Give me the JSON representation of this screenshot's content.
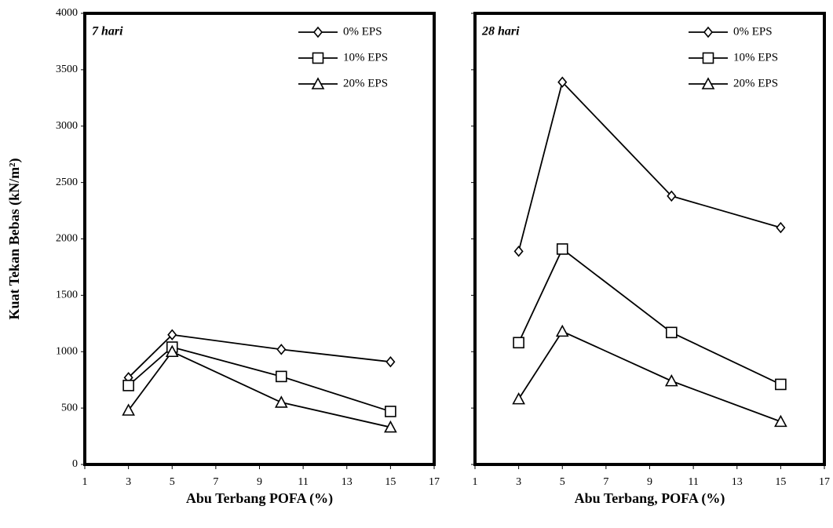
{
  "chart_data": [
    {
      "type": "line",
      "title": "7 hari",
      "x_label": "Abu Terbang POFA (%)",
      "y_label": "Kuat Tekan Bebas (kN/m²)",
      "x": [
        3,
        5,
        10,
        15
      ],
      "series": [
        {
          "name": "0% EPS",
          "color": "#000000",
          "marker": "diamond",
          "values": [
            770,
            1150,
            1020,
            910
          ]
        },
        {
          "name": "10% EPS",
          "color": "#000000",
          "marker": "square",
          "values": [
            700,
            1040,
            780,
            470
          ]
        },
        {
          "name": "20% EPS",
          "color": "#000000",
          "marker": "triangle",
          "values": [
            480,
            1000,
            550,
            330
          ]
        }
      ],
      "xlim": [
        1,
        17
      ],
      "xticks": [
        1,
        3,
        5,
        7,
        9,
        11,
        13,
        15,
        17
      ],
      "ylim": [
        0,
        4000
      ],
      "yticks": [
        0,
        500,
        1000,
        1500,
        2000,
        2500,
        3000,
        3500,
        4000
      ],
      "ytick_labels": true,
      "legend": "upper right",
      "grid": false
    },
    {
      "type": "line",
      "title": "28 hari",
      "x_label": "Abu Terbang, POFA (%)",
      "x": [
        3,
        5,
        10,
        15
      ],
      "series": [
        {
          "name": "0% EPS",
          "color": "#000000",
          "marker": "diamond",
          "values": [
            1890,
            3390,
            2380,
            2100
          ]
        },
        {
          "name": "10% EPS",
          "color": "#000000",
          "marker": "square",
          "values": [
            1080,
            1910,
            1170,
            710
          ]
        },
        {
          "name": "20% EPS",
          "color": "#000000",
          "marker": "triangle",
          "values": [
            580,
            1180,
            740,
            380
          ]
        }
      ],
      "xlim": [
        1,
        17
      ],
      "xticks": [
        1,
        3,
        5,
        7,
        9,
        11,
        13,
        15,
        17
      ],
      "ylim": [
        0,
        4000
      ],
      "yticks": [
        0,
        500,
        1000,
        1500,
        2000,
        2500,
        3000,
        3500,
        4000
      ],
      "ytick_labels": false,
      "legend": "upper right",
      "grid": false
    }
  ]
}
